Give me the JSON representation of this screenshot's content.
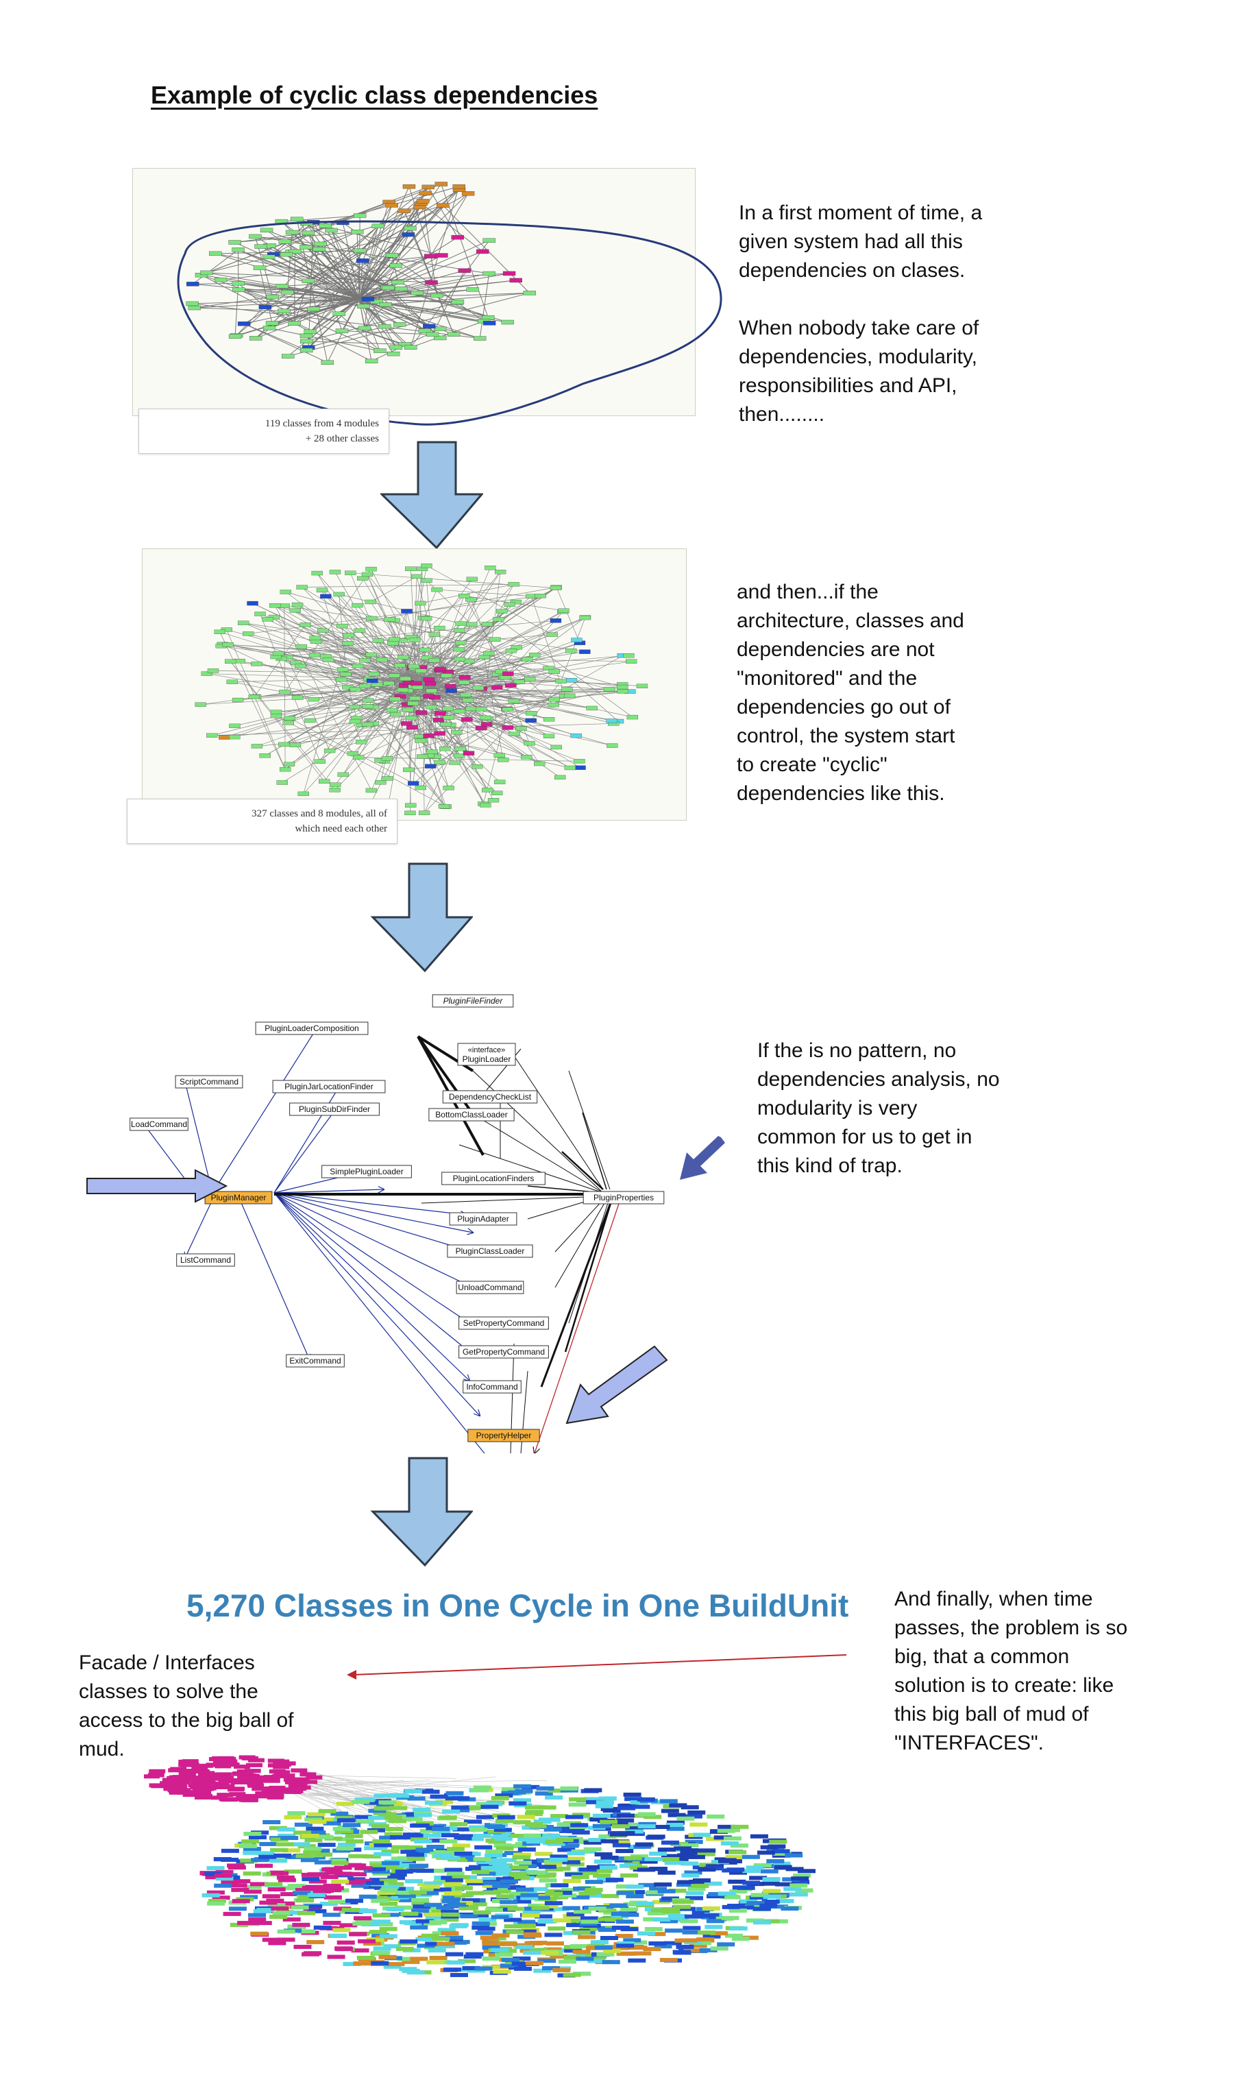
{
  "title": "Example of cyclic class dependencies",
  "panel1": {
    "caption_line1": "119 classes from 4 modules",
    "caption_line2": "+ 28 other classes",
    "note": [
      "In a first moment of time, a",
      "given system had all this",
      "dependencies on clases.",
      "",
      "When nobody take care of",
      "dependencies, modularity,",
      "responsibilities and API,",
      "then........"
    ]
  },
  "panel2": {
    "caption_line1": "327 classes and 8 modules, all of",
    "caption_line2": "which need each other",
    "note": [
      "and then...if the",
      "architecture, classes and",
      "dependencies are not",
      "\"monitored\" and the",
      "dependencies go out of",
      "control, the system start",
      "to create \"cyclic\"",
      "dependencies like this."
    ]
  },
  "panel3": {
    "nodes": {
      "plugin_file_finder": "PluginFileFinder",
      "plugin_loader_composition": "PluginLoaderComposition",
      "interface_plugin_loader_1": "«interface»",
      "interface_plugin_loader_2": "PluginLoader",
      "script_command": "ScriptCommand",
      "plugin_jar_location_finder": "PluginJarLocationFinder",
      "dependency_check_list": "DependencyCheckList",
      "load_command": "LoadCommand",
      "plugin_subdir_finder": "PluginSubDirFinder",
      "bottom_class_loader": "BottomClassLoader",
      "simple_plugin_loader": "SimplePluginLoader",
      "plugin_location_finders": "PluginLocationFinders",
      "plugin_manager": "PluginManager",
      "plugin_properties": "PluginProperties",
      "plugin_adapter": "PluginAdapter",
      "plugin_class_loader": "PluginClassLoader",
      "list_command": "ListCommand",
      "unload_command": "UnloadCommand",
      "set_property_command": "SetPropertyCommand",
      "get_property_command": "GetPropertyCommand",
      "exit_command": "ExitCommand",
      "info_command": "InfoCommand",
      "property_helper": "PropertyHelper"
    },
    "note": [
      "If the is no pattern, no",
      "dependencies analysis, no",
      "modularity is very",
      "common for us to get in",
      "this kind of trap."
    ]
  },
  "panel4": {
    "heading": "5,270 Classes in One Cycle in One BuildUnit",
    "left_note": [
      "Facade / Interfaces",
      "classes to solve the",
      "access to the big ball of",
      "mud."
    ],
    "right_note": [
      "And finally, when time",
      "passes, the problem is so",
      "big, that a common",
      "solution is to create: like",
      "this big ball of mud of",
      "\"INTERFACES\"."
    ]
  },
  "colors": {
    "arrow_fill": "#9dc3e6",
    "arrow_stroke": "#2f3b4a",
    "side_arrow_fill": "#a9b8ef",
    "side_arrow_dark": "#4a5aa8",
    "highlight_node": "#f4b13d",
    "heading_blue": "#3a83b8",
    "node_green": "#7ee37e",
    "node_magenta": "#d11f8f",
    "node_orange": "#d58a2a",
    "node_blue": "#1f4fd0",
    "node_cyan": "#58d8e8",
    "outline_navy": "#273b7a",
    "annotation_red": "#c0262c"
  }
}
